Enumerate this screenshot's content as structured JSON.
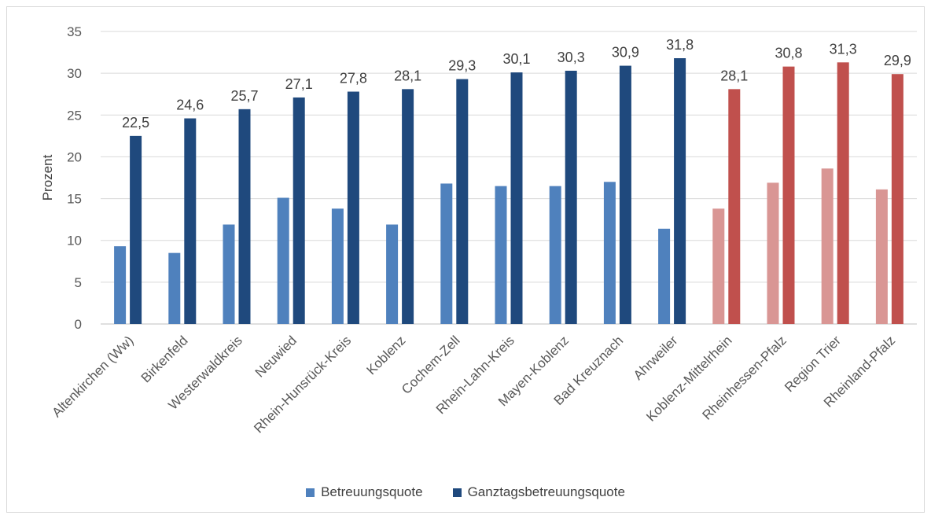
{
  "chart_data": {
    "type": "bar",
    "ylabel": "Prozent",
    "ylim": [
      0,
      35
    ],
    "yticks": [
      0,
      5,
      10,
      15,
      20,
      25,
      30,
      35
    ],
    "grid": true,
    "legend_position": "bottom",
    "categories": [
      "Altenkirchen (Ww)",
      "Birkenfeld",
      "Westerwaldkreis",
      "Neuwied",
      "Rhein-Hunsrück-Kreis",
      "Koblenz",
      "Cochem-Zell",
      "Rhein-Lahn-Kreis",
      "Mayen-Koblenz",
      "Bad Kreuznach",
      "Ahrweiler",
      "Koblenz-Mittelrhein",
      "Rheinhessen-Pfalz",
      "Region Trier",
      "Rheinland-Pfalz"
    ],
    "series": [
      {
        "name": "Betreuungsquote",
        "values": [
          9.3,
          8.5,
          11.9,
          15.1,
          13.8,
          11.9,
          16.8,
          16.5,
          16.5,
          17.0,
          11.4,
          13.8,
          16.9,
          18.6,
          16.1
        ],
        "color": "#4f81bd",
        "highlight_color": "#d99694"
      },
      {
        "name": "Ganztagsbetreuungsquote",
        "values": [
          22.5,
          24.6,
          25.7,
          27.1,
          27.8,
          28.1,
          29.3,
          30.1,
          30.3,
          30.9,
          31.8,
          28.1,
          30.8,
          31.3,
          29.9
        ],
        "labels": [
          "22,5",
          "24,6",
          "25,7",
          "27,1",
          "27,8",
          "28,1",
          "29,3",
          "30,1",
          "30,3",
          "30,9",
          "31,8",
          "28,1",
          "30,8",
          "31,3",
          "29,9"
        ],
        "color": "#1f497d",
        "highlight_color": "#c0504d"
      }
    ],
    "highlight_categories": [
      "Koblenz-Mittelrhein",
      "Rheinhessen-Pfalz",
      "Region Trier",
      "Rheinland-Pfalz"
    ]
  },
  "legend": {
    "items": [
      {
        "label": "Betreuungsquote",
        "color": "#4f81bd"
      },
      {
        "label": "Ganztagsbetreuungsquote",
        "color": "#1f497d"
      }
    ]
  }
}
